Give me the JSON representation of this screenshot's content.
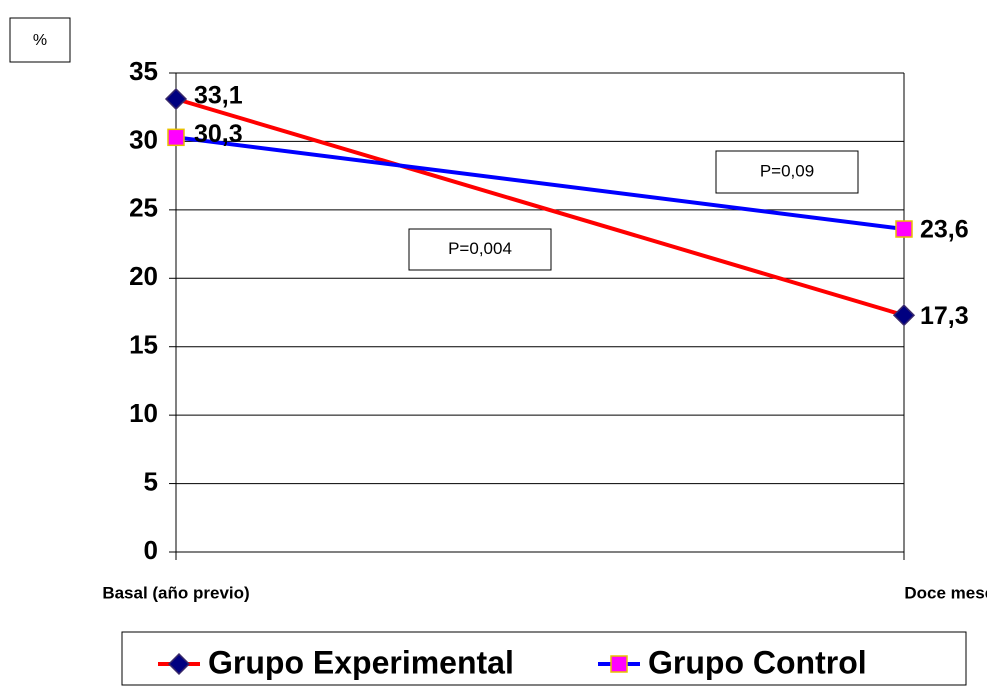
{
  "chart_data": {
    "type": "line",
    "y_label": "%",
    "categories": [
      "Basal (año previo)",
      "Doce meses"
    ],
    "series": [
      {
        "name": "Grupo Experimental",
        "color": "#ff0000",
        "marker_color": "#000080",
        "values": [
          33.1,
          17.3
        ],
        "value_labels": [
          "33,1",
          "17,3"
        ]
      },
      {
        "name": "Grupo Control",
        "color": "#0000ff",
        "marker_color": "#ff00ff",
        "values": [
          30.3,
          23.6
        ],
        "value_labels": [
          "30,3",
          "23,6"
        ]
      }
    ],
    "annotations": [
      "P=0,004",
      "P=0,09"
    ],
    "ylim": [
      0,
      35
    ],
    "yticks": [
      0,
      5,
      10,
      15,
      20,
      25,
      30,
      35
    ],
    "grid": true,
    "legend": "bottom"
  }
}
